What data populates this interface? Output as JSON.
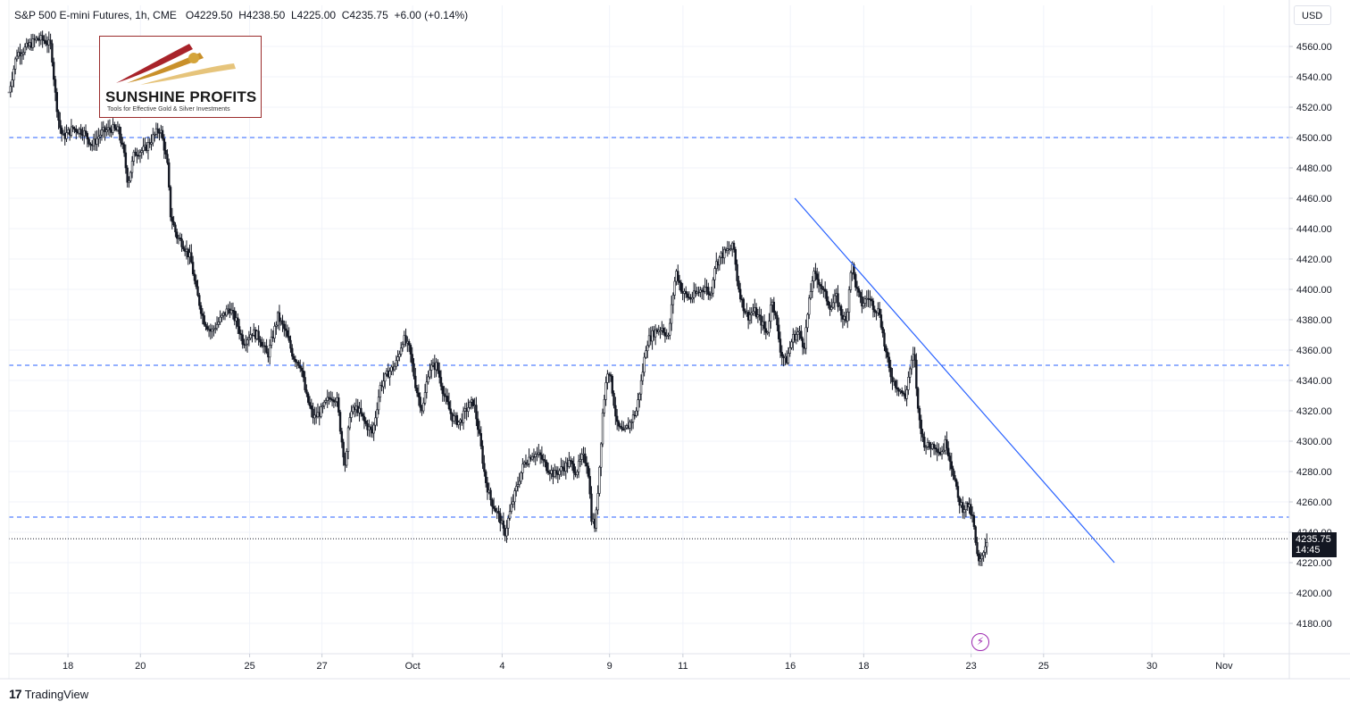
{
  "header": {
    "symbol": "S&P 500 E-mini Futures, 1h, CME",
    "open": "O4229.50",
    "high": "H4238.50",
    "low": "L4225.00",
    "close": "C4235.75",
    "change": "+6.00 (+0.14%)"
  },
  "currency": "USD",
  "logo": {
    "name": "SUNSHINE PROFITS",
    "tagline": "Tools for Effective Gold & Silver Investments"
  },
  "last_price": {
    "price": "4235.75",
    "countdown": "14:45"
  },
  "footer": {
    "brand": "TradingView",
    "mark": "17"
  },
  "icons": {
    "event": "lightning-icon",
    "brand": "tradingview-logo-icon"
  },
  "colors": {
    "trendline": "#2962ff",
    "dashed_level": "#2962ff",
    "candle": "#131722",
    "event": "#9c27b0"
  },
  "chart_data": {
    "type": "candlestick",
    "interval": "1h",
    "ylim": [
      4160,
      4570
    ],
    "y_ticks": [
      4180,
      4200,
      4220,
      4240,
      4260,
      4280,
      4300,
      4320,
      4340,
      4360,
      4380,
      4400,
      4420,
      4440,
      4460,
      4480,
      4500,
      4520,
      4540,
      4560
    ],
    "y_tick_labels": [
      "4180.00",
      "4200.00",
      "4220.00",
      "4240.00",
      "4260.00",
      "4280.00",
      "4300.00",
      "4320.00",
      "4340.00",
      "4360.00",
      "4380.00",
      "4400.00",
      "4420.00",
      "4440.00",
      "4460.00",
      "4480.00",
      "4500.00",
      "4520.00",
      "4540.00",
      "4560.00"
    ],
    "x_ticks": [
      {
        "label": "18",
        "pos": 0.0461
      },
      {
        "label": "20",
        "pos": 0.1027
      },
      {
        "label": "25",
        "pos": 0.188
      },
      {
        "label": "27",
        "pos": 0.2445
      },
      {
        "label": "Oct",
        "pos": 0.3153
      },
      {
        "label": "4",
        "pos": 0.3852
      },
      {
        "label": "9",
        "pos": 0.4691
      },
      {
        "label": "11",
        "pos": 0.5264
      },
      {
        "label": "16",
        "pos": 0.6103
      },
      {
        "label": "18",
        "pos": 0.6676
      },
      {
        "label": "23",
        "pos": 0.7515
      },
      {
        "label": "25",
        "pos": 0.8081
      },
      {
        "label": "30",
        "pos": 0.8927
      },
      {
        "label": "Nov",
        "pos": 0.949
      }
    ],
    "horizontal_levels": [
      4500,
      4350,
      4250
    ],
    "last_price_line": 4235.75,
    "trendline": [
      {
        "pos": 0.6138,
        "y": 4460
      },
      {
        "pos": 0.8634,
        "y": 4220
      }
    ],
    "price_path": [
      [
        0.0,
        4530
      ],
      [
        0.006,
        4555
      ],
      [
        0.015,
        4560
      ],
      [
        0.022,
        4565
      ],
      [
        0.028,
        4564
      ],
      [
        0.033,
        4560
      ],
      [
        0.036,
        4530
      ],
      [
        0.039,
        4510
      ],
      [
        0.042,
        4500
      ],
      [
        0.05,
        4506
      ],
      [
        0.058,
        4504
      ],
      [
        0.065,
        4495
      ],
      [
        0.072,
        4503
      ],
      [
        0.08,
        4506
      ],
      [
        0.086,
        4504
      ],
      [
        0.09,
        4488
      ],
      [
        0.093,
        4470
      ],
      [
        0.098,
        4490
      ],
      [
        0.106,
        4492
      ],
      [
        0.114,
        4502
      ],
      [
        0.118,
        4506
      ],
      [
        0.121,
        4495
      ],
      [
        0.124,
        4480
      ],
      [
        0.126,
        4450
      ],
      [
        0.131,
        4435
      ],
      [
        0.136,
        4430
      ],
      [
        0.142,
        4420
      ],
      [
        0.146,
        4400
      ],
      [
        0.152,
        4380
      ],
      [
        0.158,
        4372
      ],
      [
        0.165,
        4380
      ],
      [
        0.172,
        4388
      ],
      [
        0.178,
        4378
      ],
      [
        0.183,
        4365
      ],
      [
        0.19,
        4372
      ],
      [
        0.196,
        4368
      ],
      [
        0.202,
        4356
      ],
      [
        0.21,
        4382
      ],
      [
        0.216,
        4372
      ],
      [
        0.222,
        4356
      ],
      [
        0.228,
        4350
      ],
      [
        0.232,
        4330
      ],
      [
        0.238,
        4315
      ],
      [
        0.244,
        4320
      ],
      [
        0.251,
        4330
      ],
      [
        0.256,
        4328
      ],
      [
        0.26,
        4300
      ],
      [
        0.263,
        4282
      ],
      [
        0.266,
        4318
      ],
      [
        0.272,
        4322
      ],
      [
        0.278,
        4312
      ],
      [
        0.284,
        4305
      ],
      [
        0.29,
        4336
      ],
      [
        0.296,
        4345
      ],
      [
        0.302,
        4350
      ],
      [
        0.308,
        4368
      ],
      [
        0.313,
        4360
      ],
      [
        0.318,
        4335
      ],
      [
        0.323,
        4320
      ],
      [
        0.328,
        4348
      ],
      [
        0.334,
        4350
      ],
      [
        0.34,
        4330
      ],
      [
        0.346,
        4316
      ],
      [
        0.352,
        4312
      ],
      [
        0.358,
        4322
      ],
      [
        0.363,
        4326
      ],
      [
        0.368,
        4300
      ],
      [
        0.372,
        4275
      ],
      [
        0.376,
        4262
      ],
      [
        0.38,
        4255
      ],
      [
        0.384,
        4248
      ],
      [
        0.387,
        4238
      ],
      [
        0.391,
        4252
      ],
      [
        0.396,
        4268
      ],
      [
        0.402,
        4285
      ],
      [
        0.409,
        4292
      ],
      [
        0.415,
        4290
      ],
      [
        0.42,
        4283
      ],
      [
        0.426,
        4278
      ],
      [
        0.432,
        4282
      ],
      [
        0.438,
        4286
      ],
      [
        0.443,
        4280
      ],
      [
        0.448,
        4290
      ],
      [
        0.452,
        4285
      ],
      [
        0.455,
        4250
      ],
      [
        0.458,
        4243
      ],
      [
        0.461,
        4280
      ],
      [
        0.464,
        4322
      ],
      [
        0.468,
        4350
      ],
      [
        0.471,
        4335
      ],
      [
        0.475,
        4310
      ],
      [
        0.48,
        4305
      ],
      [
        0.485,
        4312
      ],
      [
        0.49,
        4320
      ],
      [
        0.494,
        4340
      ],
      [
        0.498,
        4365
      ],
      [
        0.504,
        4372
      ],
      [
        0.51,
        4375
      ],
      [
        0.515,
        4368
      ],
      [
        0.518,
        4392
      ],
      [
        0.521,
        4412
      ],
      [
        0.526,
        4398
      ],
      [
        0.532,
        4394
      ],
      [
        0.538,
        4398
      ],
      [
        0.544,
        4402
      ],
      [
        0.548,
        4395
      ],
      [
        0.551,
        4415
      ],
      [
        0.556,
        4422
      ],
      [
        0.562,
        4426
      ],
      [
        0.566,
        4428
      ],
      [
        0.569,
        4405
      ],
      [
        0.573,
        4390
      ],
      [
        0.577,
        4382
      ],
      [
        0.582,
        4386
      ],
      [
        0.588,
        4378
      ],
      [
        0.592,
        4370
      ],
      [
        0.596,
        4395
      ],
      [
        0.6,
        4375
      ],
      [
        0.603,
        4358
      ],
      [
        0.607,
        4352
      ],
      [
        0.612,
        4368
      ],
      [
        0.617,
        4372
      ],
      [
        0.621,
        4362
      ],
      [
        0.624,
        4385
      ],
      [
        0.628,
        4410
      ],
      [
        0.633,
        4405
      ],
      [
        0.638,
        4395
      ],
      [
        0.642,
        4388
      ],
      [
        0.646,
        4395
      ],
      [
        0.65,
        4384
      ],
      [
        0.654,
        4378
      ],
      [
        0.658,
        4418
      ],
      [
        0.662,
        4400
      ],
      [
        0.666,
        4390
      ],
      [
        0.671,
        4395
      ],
      [
        0.676,
        4388
      ],
      [
        0.68,
        4385
      ],
      [
        0.684,
        4362
      ],
      [
        0.688,
        4345
      ],
      [
        0.692,
        4338
      ],
      [
        0.696,
        4334
      ],
      [
        0.7,
        4328
      ],
      [
        0.703,
        4345
      ],
      [
        0.707,
        4358
      ],
      [
        0.71,
        4320
      ],
      [
        0.714,
        4300
      ],
      [
        0.718,
        4296
      ],
      [
        0.723,
        4298
      ],
      [
        0.728,
        4292
      ],
      [
        0.732,
        4300
      ],
      [
        0.735,
        4288
      ],
      [
        0.738,
        4278
      ],
      [
        0.741,
        4262
      ],
      [
        0.745,
        4256
      ],
      [
        0.749,
        4258
      ],
      [
        0.753,
        4248
      ],
      [
        0.756,
        4225
      ],
      [
        0.758,
        4218
      ],
      [
        0.761,
        4228
      ],
      [
        0.764,
        4235.75
      ]
    ]
  }
}
